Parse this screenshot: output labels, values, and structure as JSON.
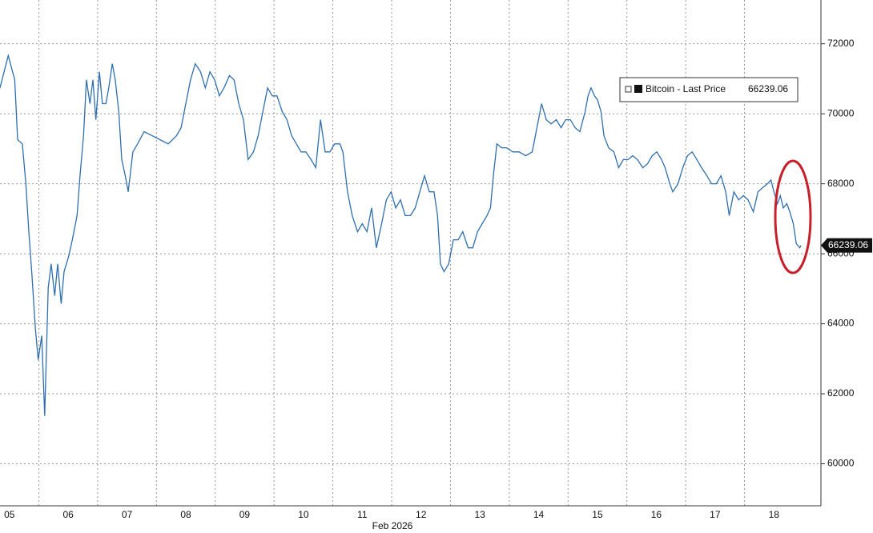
{
  "chart_data": {
    "type": "line",
    "xlabel": "Feb 2026",
    "xlim": [
      4.84,
      18.8
    ],
    "xticks": [
      {
        "value": 5,
        "label": "05"
      },
      {
        "value": 6,
        "label": "06"
      },
      {
        "value": 7,
        "label": "07"
      },
      {
        "value": 8,
        "label": "08"
      },
      {
        "value": 9,
        "label": "09"
      },
      10,
      11,
      12,
      13,
      14,
      15,
      16,
      17,
      18
    ],
    "ylim": [
      58800,
      73250
    ],
    "yticks": [
      60000,
      62000,
      64000,
      66000,
      68000,
      70000,
      72000
    ],
    "grid": true,
    "x": [
      4.84,
      4.98,
      5.09,
      5.14,
      5.22,
      5.28,
      5.33,
      5.38,
      5.44,
      5.49,
      5.55,
      5.6,
      5.66,
      5.71,
      5.77,
      5.82,
      5.88,
      5.93,
      6.01,
      6.07,
      6.15,
      6.2,
      6.26,
      6.31,
      6.37,
      6.42,
      6.47,
      6.53,
      6.58,
      6.64,
      6.69,
      6.75,
      6.8,
      6.86,
      6.91,
      6.97,
      7.02,
      7.1,
      7.18,
      7.29,
      7.43,
      7.56,
      7.7,
      7.84,
      7.92,
      8.0,
      8.08,
      8.16,
      8.25,
      8.33,
      8.41,
      8.49,
      8.57,
      8.65,
      8.74,
      8.82,
      8.9,
      8.98,
      9.06,
      9.15,
      9.23,
      9.31,
      9.39,
      9.47,
      9.55,
      9.64,
      9.72,
      9.8,
      9.88,
      9.96,
      10.04,
      10.13,
      10.21,
      10.29,
      10.37,
      10.45,
      10.53,
      10.62,
      10.67,
      10.75,
      10.83,
      10.92,
      11.0,
      11.08,
      11.16,
      11.24,
      11.33,
      11.41,
      11.49,
      11.57,
      11.65,
      11.73,
      11.82,
      11.9,
      11.98,
      12.06,
      12.14,
      12.22,
      12.28,
      12.33,
      12.39,
      12.47,
      12.55,
      12.63,
      12.71,
      12.8,
      12.88,
      12.96,
      13.04,
      13.12,
      13.18,
      13.23,
      13.29,
      13.37,
      13.45,
      13.56,
      13.67,
      13.78,
      13.89,
      13.97,
      14.05,
      14.13,
      14.21,
      14.3,
      14.38,
      14.46,
      14.54,
      14.62,
      14.7,
      14.79,
      14.84,
      14.89,
      14.95,
      15.0,
      15.06,
      15.11,
      15.19,
      15.28,
      15.36,
      15.44,
      15.52,
      15.6,
      15.68,
      15.77,
      15.85,
      15.93,
      16.01,
      16.09,
      16.15,
      16.23,
      16.28,
      16.37,
      16.45,
      16.53,
      16.61,
      16.69,
      16.77,
      16.86,
      16.94,
      17.02,
      17.1,
      17.18,
      17.24,
      17.32,
      17.4,
      17.48,
      17.56,
      17.65,
      17.73,
      17.81,
      17.89,
      17.95,
      18.0,
      18.06,
      18.11,
      18.16,
      18.22,
      18.27,
      18.33,
      18.38,
      18.44,
      18.46
    ],
    "series": [
      {
        "name": "Bitcoin - Last Price",
        "color": "#2f6fb0",
        "values": [
          70740,
          71660,
          70970,
          69260,
          69140,
          68000,
          66630,
          65490,
          63890,
          62970,
          63660,
          61370,
          65030,
          65710,
          64800,
          65710,
          64570,
          65490,
          65940,
          66400,
          67090,
          68230,
          69370,
          70970,
          70290,
          70970,
          69830,
          71200,
          70290,
          70290,
          70740,
          71430,
          70970,
          70060,
          68690,
          68230,
          67770,
          68910,
          69140,
          69490,
          69370,
          69260,
          69140,
          69370,
          69600,
          70290,
          70970,
          71430,
          71200,
          70740,
          71200,
          70970,
          70510,
          70740,
          71090,
          70970,
          70290,
          69830,
          68690,
          68910,
          69370,
          70060,
          70740,
          70510,
          70510,
          70060,
          69830,
          69370,
          69140,
          68910,
          68910,
          68690,
          68460,
          69830,
          68910,
          68910,
          69140,
          69140,
          68910,
          67770,
          67090,
          66630,
          66860,
          66630,
          67310,
          66170,
          66860,
          67540,
          67770,
          67310,
          67540,
          67090,
          67090,
          67310,
          67770,
          68230,
          67770,
          67770,
          67090,
          65710,
          65490,
          65710,
          66400,
          66400,
          66630,
          66170,
          66170,
          66630,
          66860,
          67090,
          67310,
          68230,
          69140,
          69030,
          69030,
          68910,
          68910,
          68800,
          68910,
          69600,
          70290,
          69830,
          69710,
          69830,
          69600,
          69830,
          69830,
          69600,
          69490,
          70060,
          70510,
          70740,
          70510,
          70400,
          70060,
          69370,
          69030,
          68910,
          68460,
          68690,
          68690,
          68800,
          68690,
          68460,
          68570,
          68800,
          68910,
          68690,
          68460,
          68000,
          67770,
          68000,
          68460,
          68800,
          68910,
          68690,
          68460,
          68230,
          68000,
          68000,
          68230,
          67770,
          67090,
          67770,
          67540,
          67660,
          67540,
          67200,
          67770,
          67890,
          68000,
          68110,
          67770,
          67430,
          67660,
          67310,
          67430,
          67200,
          66860,
          66290,
          66170,
          66239.06
        ]
      }
    ]
  }
}
